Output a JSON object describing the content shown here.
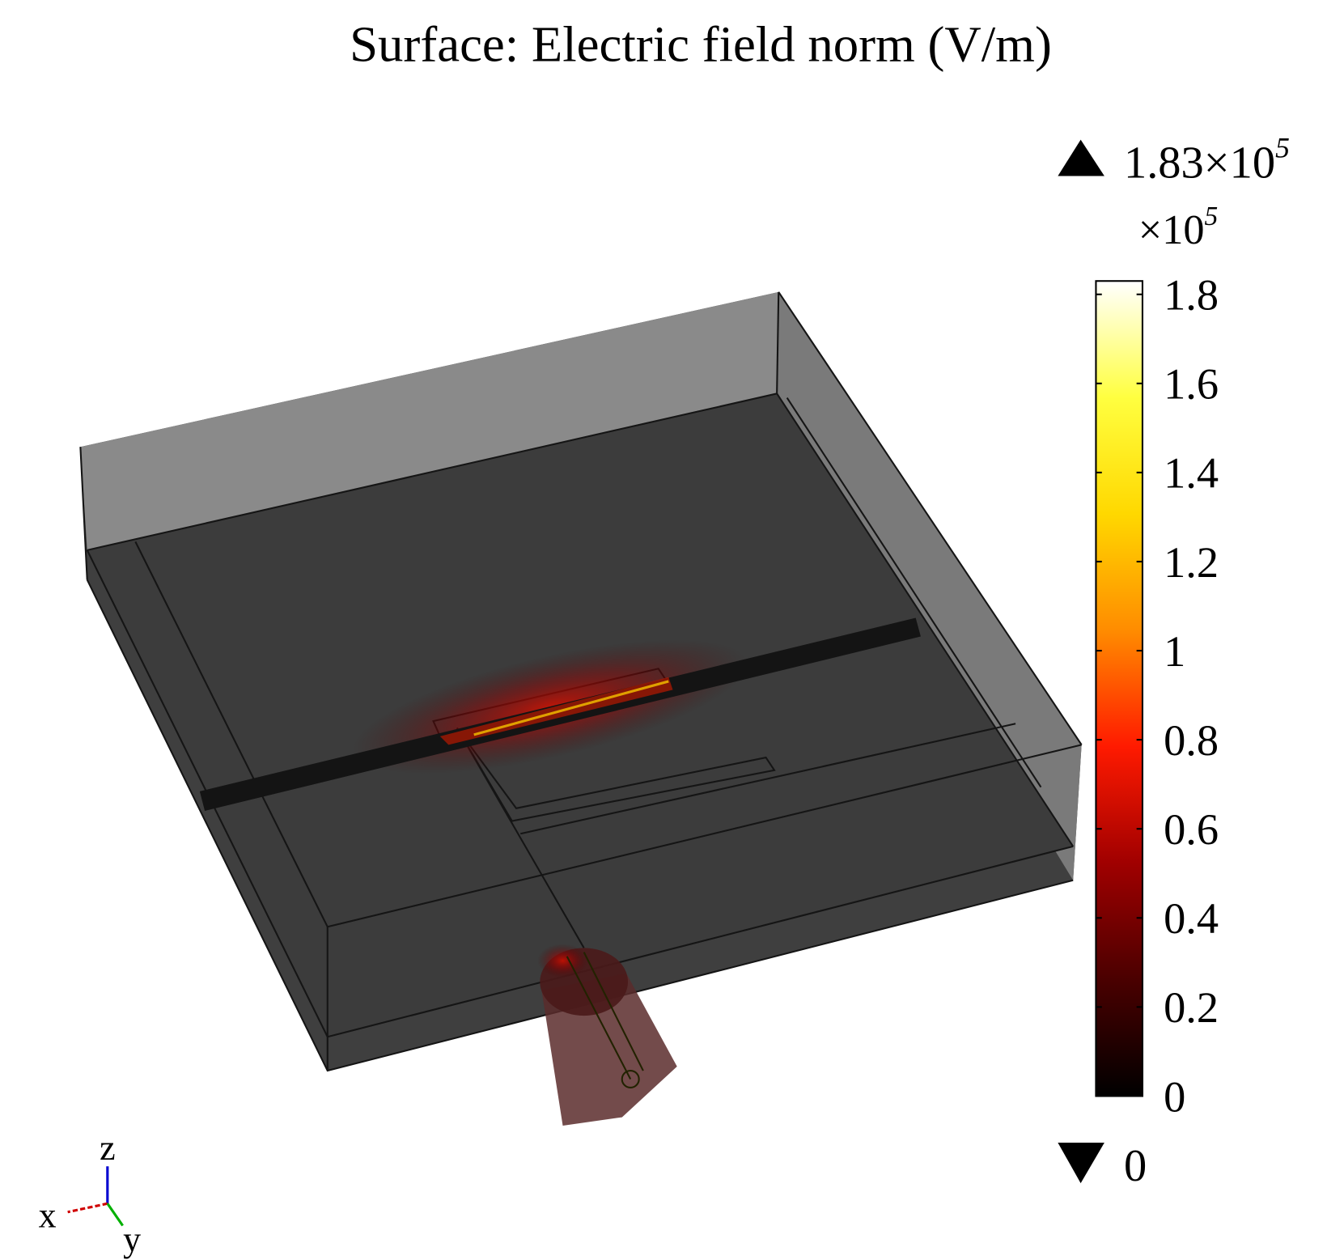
{
  "chart_data": {
    "type": "surface",
    "title": "Surface: Electric field norm (V/m)",
    "colorbar": {
      "clim": [
        0,
        1.83
      ],
      "ticks": [
        0,
        0.2,
        0.4,
        0.6,
        0.8,
        1,
        1.2,
        1.4,
        1.6,
        1.8
      ],
      "scale_label": {
        "prefix": "×10",
        "exponent": "5"
      },
      "max_label": {
        "mantissa": "1.83×10",
        "exponent": "5"
      },
      "min_label": "0",
      "colormap": [
        "#000000",
        "#4a0000",
        "#a00000",
        "#ff1a00",
        "#ff8c00",
        "#ffd800",
        "#ffff40",
        "#ffffff"
      ]
    },
    "axes_triad": {
      "x": "x",
      "y": "y",
      "z": "z"
    }
  }
}
